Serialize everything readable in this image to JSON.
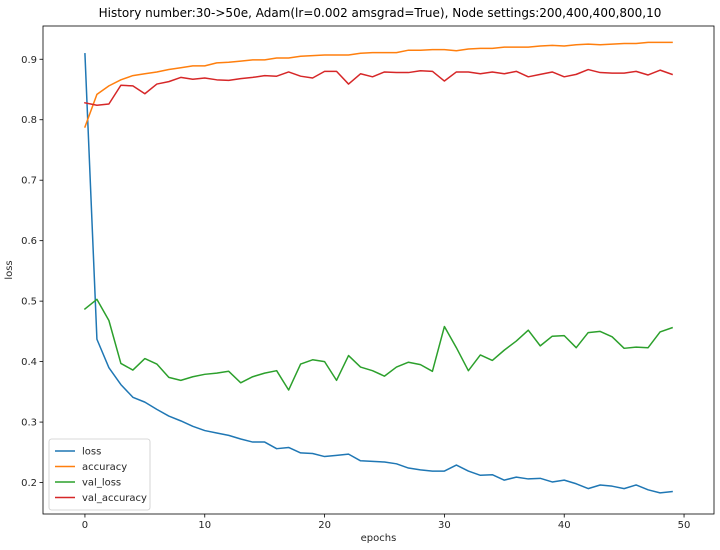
{
  "chart_data": {
    "type": "line",
    "title": "History number:30->50e, Adam(lr=0.002 amsgrad=True), Node settings:200,400,400,800,10",
    "xlabel": "epochs",
    "ylabel": "loss",
    "xlim": [
      -3.5,
      52.5
    ],
    "ylim": [
      0.148,
      0.955
    ],
    "xticks": [
      0,
      10,
      20,
      30,
      40,
      50
    ],
    "yticks": [
      0.2,
      0.3,
      0.4,
      0.5,
      0.6,
      0.7,
      0.8,
      0.9
    ],
    "grid": false,
    "legend_position": "lower-left",
    "x": [
      0,
      1,
      2,
      3,
      4,
      5,
      6,
      7,
      8,
      9,
      10,
      11,
      12,
      13,
      14,
      15,
      16,
      17,
      18,
      19,
      20,
      21,
      22,
      23,
      24,
      25,
      26,
      27,
      28,
      29,
      30,
      31,
      32,
      33,
      34,
      35,
      36,
      37,
      38,
      39,
      40,
      41,
      42,
      43,
      44,
      45,
      46,
      47,
      48,
      49
    ],
    "series": [
      {
        "name": "loss",
        "color": "#1f77b4",
        "values": [
          0.909,
          0.437,
          0.39,
          0.362,
          0.341,
          0.333,
          0.321,
          0.31,
          0.302,
          0.293,
          0.286,
          0.282,
          0.278,
          0.272,
          0.267,
          0.267,
          0.256,
          0.258,
          0.249,
          0.248,
          0.243,
          0.245,
          0.247,
          0.236,
          0.235,
          0.234,
          0.231,
          0.224,
          0.221,
          0.219,
          0.219,
          0.229,
          0.219,
          0.212,
          0.213,
          0.204,
          0.209,
          0.206,
          0.207,
          0.201,
          0.204,
          0.198,
          0.19,
          0.196,
          0.194,
          0.19,
          0.196,
          0.188,
          0.183,
          0.185
        ]
      },
      {
        "name": "accuracy",
        "color": "#ff7f0e",
        "values": [
          0.788,
          0.842,
          0.856,
          0.866,
          0.873,
          0.876,
          0.879,
          0.883,
          0.886,
          0.889,
          0.889,
          0.894,
          0.895,
          0.897,
          0.899,
          0.899,
          0.902,
          0.902,
          0.905,
          0.906,
          0.907,
          0.907,
          0.907,
          0.91,
          0.911,
          0.911,
          0.911,
          0.915,
          0.915,
          0.916,
          0.916,
          0.914,
          0.917,
          0.918,
          0.918,
          0.92,
          0.92,
          0.92,
          0.922,
          0.923,
          0.922,
          0.924,
          0.925,
          0.924,
          0.925,
          0.926,
          0.926,
          0.928,
          0.928,
          0.928
        ]
      },
      {
        "name": "val_loss",
        "color": "#2ca02c",
        "values": [
          0.487,
          0.503,
          0.468,
          0.397,
          0.386,
          0.405,
          0.396,
          0.374,
          0.369,
          0.375,
          0.379,
          0.381,
          0.384,
          0.365,
          0.375,
          0.381,
          0.385,
          0.353,
          0.396,
          0.403,
          0.4,
          0.369,
          0.41,
          0.391,
          0.385,
          0.376,
          0.391,
          0.399,
          0.395,
          0.384,
          0.458,
          0.423,
          0.385,
          0.411,
          0.402,
          0.419,
          0.434,
          0.452,
          0.426,
          0.442,
          0.443,
          0.423,
          0.448,
          0.45,
          0.441,
          0.422,
          0.424,
          0.423,
          0.449,
          0.456
        ]
      },
      {
        "name": "val_accuracy",
        "color": "#d62728",
        "values": [
          0.828,
          0.824,
          0.826,
          0.857,
          0.856,
          0.843,
          0.859,
          0.863,
          0.87,
          0.867,
          0.869,
          0.866,
          0.865,
          0.868,
          0.87,
          0.873,
          0.872,
          0.879,
          0.872,
          0.869,
          0.88,
          0.88,
          0.859,
          0.876,
          0.871,
          0.879,
          0.878,
          0.878,
          0.881,
          0.88,
          0.864,
          0.879,
          0.879,
          0.876,
          0.879,
          0.876,
          0.88,
          0.871,
          0.875,
          0.879,
          0.871,
          0.875,
          0.883,
          0.878,
          0.877,
          0.877,
          0.88,
          0.874,
          0.882,
          0.875
        ]
      }
    ]
  }
}
